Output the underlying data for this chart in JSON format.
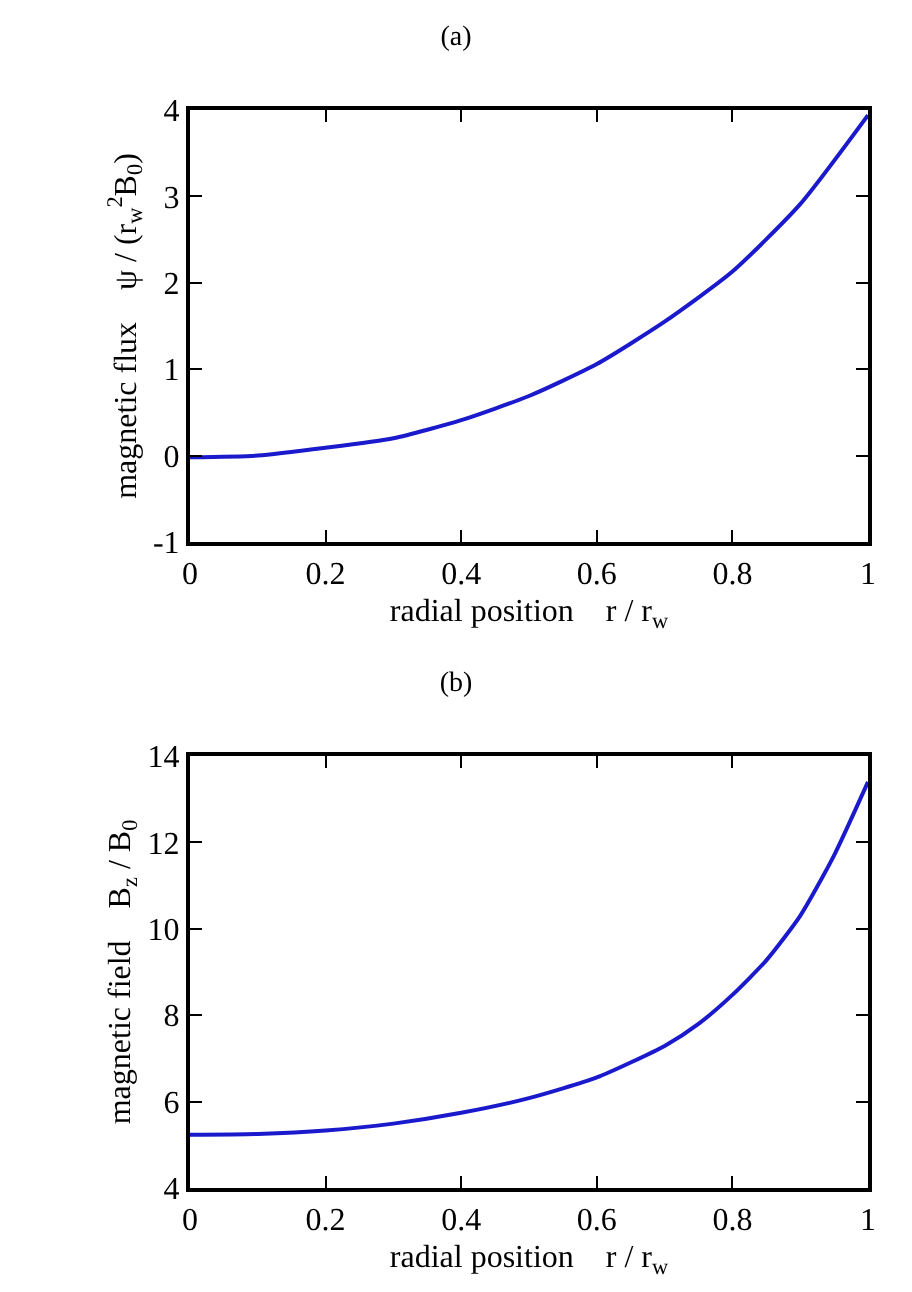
{
  "chart_data": [
    {
      "type": "line",
      "title": "(a)",
      "xlabel": "radial position    r / r$_{w}$",
      "ylabel": "magnetic flux    ψ / (r$_{w}$$^{2}$B$_{0}$)",
      "x": [
        0,
        0.1,
        0.2,
        0.3,
        0.4,
        0.5,
        0.6,
        0.7,
        0.8,
        0.9,
        1.0
      ],
      "series": [
        {
          "color": "#1a1acc",
          "values": [
            -0.02,
            0.0,
            0.09,
            0.2,
            0.41,
            0.69,
            1.06,
            1.55,
            2.13,
            2.91,
            3.94
          ]
        }
      ],
      "xlim": [
        0,
        1
      ],
      "xticks": [
        0,
        0.2,
        0.4,
        0.6,
        0.8,
        1
      ],
      "ylim": [
        -1,
        4
      ],
      "yticks": [
        -1,
        0,
        1,
        2,
        3,
        4
      ],
      "marker": "none",
      "line_style": "solid"
    },
    {
      "type": "line",
      "title": "(b)",
      "xlabel": "radial position    r / r$_{w}$",
      "ylabel": "magnetic field    B$_{z}$ / B$_{0}$",
      "x": [
        0,
        0.1,
        0.2,
        0.3,
        0.4,
        0.5,
        0.6,
        0.7,
        0.75,
        0.8,
        0.85,
        0.9,
        0.95,
        1.0
      ],
      "series": [
        {
          "color": "#1a1acc",
          "values": [
            5.23,
            5.25,
            5.33,
            5.49,
            5.74,
            6.08,
            6.56,
            7.29,
            7.8,
            8.47,
            9.27,
            10.3,
            11.7,
            13.4
          ]
        }
      ],
      "xlim": [
        0,
        1
      ],
      "xticks": [
        0,
        0.2,
        0.4,
        0.6,
        0.8,
        1
      ],
      "ylim": [
        4,
        14
      ],
      "yticks": [
        4,
        6,
        8,
        10,
        12,
        14
      ],
      "marker": "none",
      "line_style": "solid"
    }
  ]
}
